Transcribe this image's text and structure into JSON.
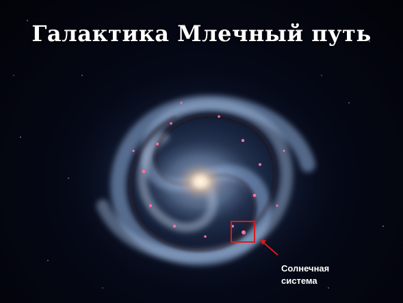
{
  "slide": {
    "title": "Галактика Млечный путь",
    "annotation": {
      "line1": "Солнечная",
      "line2": "система"
    }
  },
  "colors": {
    "title_text": "#ffffff",
    "marker_box": "#d81a1a",
    "marker_arrow": "#d81a1a",
    "label_text": "#ffffff",
    "background": "#02030a"
  },
  "icons": {
    "pointer": "arrow-icon",
    "highlight": "marker-box"
  }
}
